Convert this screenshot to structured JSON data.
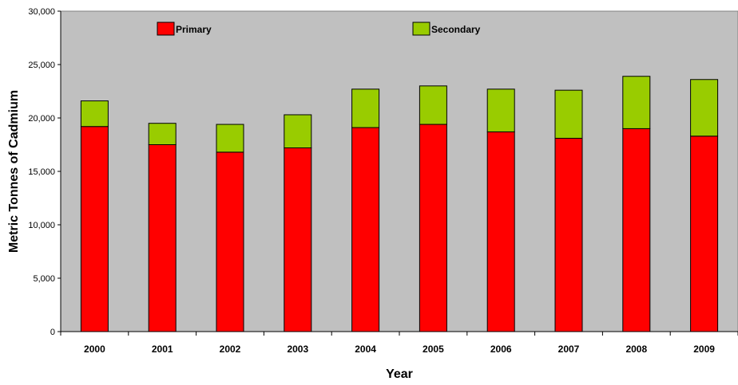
{
  "chart_data": {
    "type": "bar",
    "stacked": true,
    "title": "",
    "xlabel": "Year",
    "ylabel": "Metric Tonnes of Cadmium",
    "categories": [
      "2000",
      "2001",
      "2002",
      "2003",
      "2004",
      "2005",
      "2006",
      "2007",
      "2008",
      "2009"
    ],
    "series": [
      {
        "name": "Primary",
        "color": "#ff0000",
        "values": [
          19200,
          17500,
          16800,
          17200,
          19100,
          19400,
          18700,
          18100,
          19000,
          18300
        ]
      },
      {
        "name": "Secondary",
        "color": "#99cc00",
        "values": [
          2400,
          2000,
          2600,
          3100,
          3600,
          3600,
          4000,
          4500,
          4900,
          5300
        ]
      }
    ],
    "ylim": [
      0,
      30000
    ],
    "yticks": [
      0,
      5000,
      10000,
      15000,
      20000,
      25000,
      30000
    ],
    "ytick_labels": [
      "0",
      "5,000",
      "10,000",
      "15,000",
      "20,000",
      "25,000",
      "30,000"
    ],
    "grid": false,
    "plot_background": "#c0c0c0",
    "legend_position": "top, inside plot"
  }
}
